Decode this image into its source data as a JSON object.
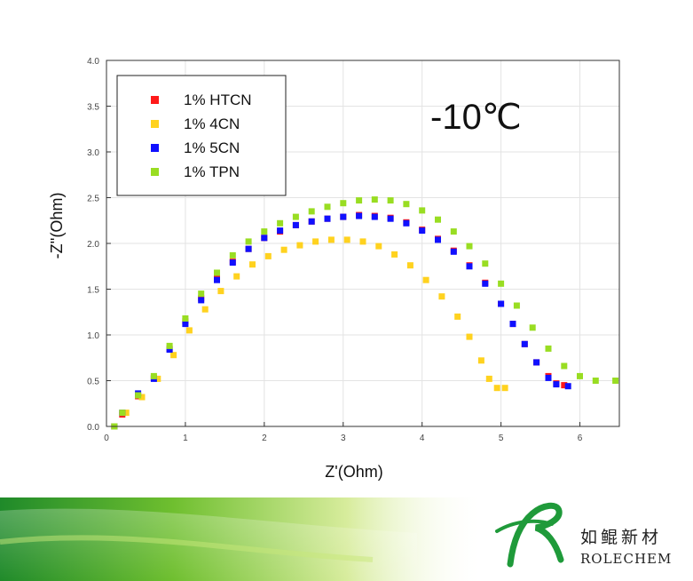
{
  "chart_data": {
    "type": "scatter",
    "title": "-10℃",
    "xlabel": "Z'(Ohm)",
    "ylabel": "-Z''(Ohm)",
    "xlim": [
      0,
      6.5
    ],
    "ylim": [
      0,
      4.0
    ],
    "x_ticks": [
      "0",
      "1",
      "2",
      "3",
      "4",
      "5",
      "6"
    ],
    "y_ticks": [
      "0.0",
      "0.5",
      "1.0",
      "1.5",
      "2.0",
      "2.5",
      "3.0",
      "3.5",
      "4.0"
    ],
    "grid": true,
    "legend_position": "top-left",
    "series": [
      {
        "name": "1% HTCN",
        "color": "#ff1a1a",
        "points": [
          [
            0.1,
            0.0
          ],
          [
            0.2,
            0.13
          ],
          [
            0.4,
            0.33
          ],
          [
            0.6,
            0.53
          ],
          [
            0.8,
            0.85
          ],
          [
            1.0,
            1.15
          ],
          [
            1.2,
            1.4
          ],
          [
            1.4,
            1.62
          ],
          [
            1.6,
            1.8
          ],
          [
            1.8,
            1.94
          ],
          [
            2.0,
            2.06
          ],
          [
            2.2,
            2.13
          ],
          [
            2.4,
            2.2
          ],
          [
            2.6,
            2.24
          ],
          [
            2.8,
            2.27
          ],
          [
            3.0,
            2.29
          ],
          [
            3.2,
            2.31
          ],
          [
            3.4,
            2.3
          ],
          [
            3.6,
            2.28
          ],
          [
            3.8,
            2.23
          ],
          [
            4.0,
            2.15
          ],
          [
            4.2,
            2.05
          ],
          [
            4.4,
            1.92
          ],
          [
            4.6,
            1.76
          ],
          [
            4.8,
            1.57
          ],
          [
            5.0,
            1.34
          ],
          [
            5.15,
            1.12
          ],
          [
            5.3,
            0.9
          ],
          [
            5.45,
            0.7
          ],
          [
            5.6,
            0.55
          ],
          [
            5.7,
            0.47
          ],
          [
            5.8,
            0.45
          ]
        ]
      },
      {
        "name": "1% 4CN",
        "color": "#ffd21f",
        "points": [
          [
            0.1,
            0.0
          ],
          [
            0.25,
            0.15
          ],
          [
            0.45,
            0.32
          ],
          [
            0.65,
            0.52
          ],
          [
            0.85,
            0.78
          ],
          [
            1.05,
            1.05
          ],
          [
            1.25,
            1.28
          ],
          [
            1.45,
            1.48
          ],
          [
            1.65,
            1.64
          ],
          [
            1.85,
            1.77
          ],
          [
            2.05,
            1.86
          ],
          [
            2.25,
            1.93
          ],
          [
            2.45,
            1.98
          ],
          [
            2.65,
            2.02
          ],
          [
            2.85,
            2.04
          ],
          [
            3.05,
            2.04
          ],
          [
            3.25,
            2.02
          ],
          [
            3.45,
            1.97
          ],
          [
            3.65,
            1.88
          ],
          [
            3.85,
            1.76
          ],
          [
            4.05,
            1.6
          ],
          [
            4.25,
            1.42
          ],
          [
            4.45,
            1.2
          ],
          [
            4.6,
            0.98
          ],
          [
            4.75,
            0.72
          ],
          [
            4.85,
            0.52
          ],
          [
            4.95,
            0.42
          ],
          [
            5.05,
            0.42
          ]
        ]
      },
      {
        "name": "1% 5CN",
        "color": "#1010ff",
        "points": [
          [
            0.1,
            0.0
          ],
          [
            0.2,
            0.15
          ],
          [
            0.4,
            0.36
          ],
          [
            0.6,
            0.52
          ],
          [
            0.8,
            0.84
          ],
          [
            1.0,
            1.12
          ],
          [
            1.2,
            1.38
          ],
          [
            1.4,
            1.6
          ],
          [
            1.6,
            1.79
          ],
          [
            1.8,
            1.94
          ],
          [
            2.0,
            2.06
          ],
          [
            2.2,
            2.14
          ],
          [
            2.4,
            2.2
          ],
          [
            2.6,
            2.24
          ],
          [
            2.8,
            2.27
          ],
          [
            3.0,
            2.29
          ],
          [
            3.2,
            2.3
          ],
          [
            3.4,
            2.29
          ],
          [
            3.6,
            2.27
          ],
          [
            3.8,
            2.22
          ],
          [
            4.0,
            2.14
          ],
          [
            4.2,
            2.04
          ],
          [
            4.4,
            1.91
          ],
          [
            4.6,
            1.75
          ],
          [
            4.8,
            1.56
          ],
          [
            5.0,
            1.34
          ],
          [
            5.15,
            1.12
          ],
          [
            5.3,
            0.9
          ],
          [
            5.45,
            0.7
          ],
          [
            5.6,
            0.53
          ],
          [
            5.7,
            0.46
          ],
          [
            5.85,
            0.44
          ]
        ]
      },
      {
        "name": "1% TPN",
        "color": "#99dd22",
        "points": [
          [
            0.1,
            0.0
          ],
          [
            0.2,
            0.15
          ],
          [
            0.4,
            0.34
          ],
          [
            0.6,
            0.55
          ],
          [
            0.8,
            0.88
          ],
          [
            1.0,
            1.18
          ],
          [
            1.2,
            1.45
          ],
          [
            1.4,
            1.68
          ],
          [
            1.6,
            1.87
          ],
          [
            1.8,
            2.02
          ],
          [
            2.0,
            2.13
          ],
          [
            2.2,
            2.22
          ],
          [
            2.4,
            2.29
          ],
          [
            2.6,
            2.35
          ],
          [
            2.8,
            2.4
          ],
          [
            3.0,
            2.44
          ],
          [
            3.2,
            2.47
          ],
          [
            3.4,
            2.48
          ],
          [
            3.6,
            2.47
          ],
          [
            3.8,
            2.43
          ],
          [
            4.0,
            2.36
          ],
          [
            4.2,
            2.26
          ],
          [
            4.4,
            2.13
          ],
          [
            4.6,
            1.97
          ],
          [
            4.8,
            1.78
          ],
          [
            5.0,
            1.56
          ],
          [
            5.2,
            1.32
          ],
          [
            5.4,
            1.08
          ],
          [
            5.6,
            0.85
          ],
          [
            5.8,
            0.66
          ],
          [
            6.0,
            0.55
          ],
          [
            6.2,
            0.5
          ],
          [
            6.45,
            0.5
          ]
        ]
      }
    ]
  },
  "branding": {
    "name_cn": "如鲲新材",
    "name_en": "ROLECHEM",
    "color": "#1f9a3a"
  }
}
